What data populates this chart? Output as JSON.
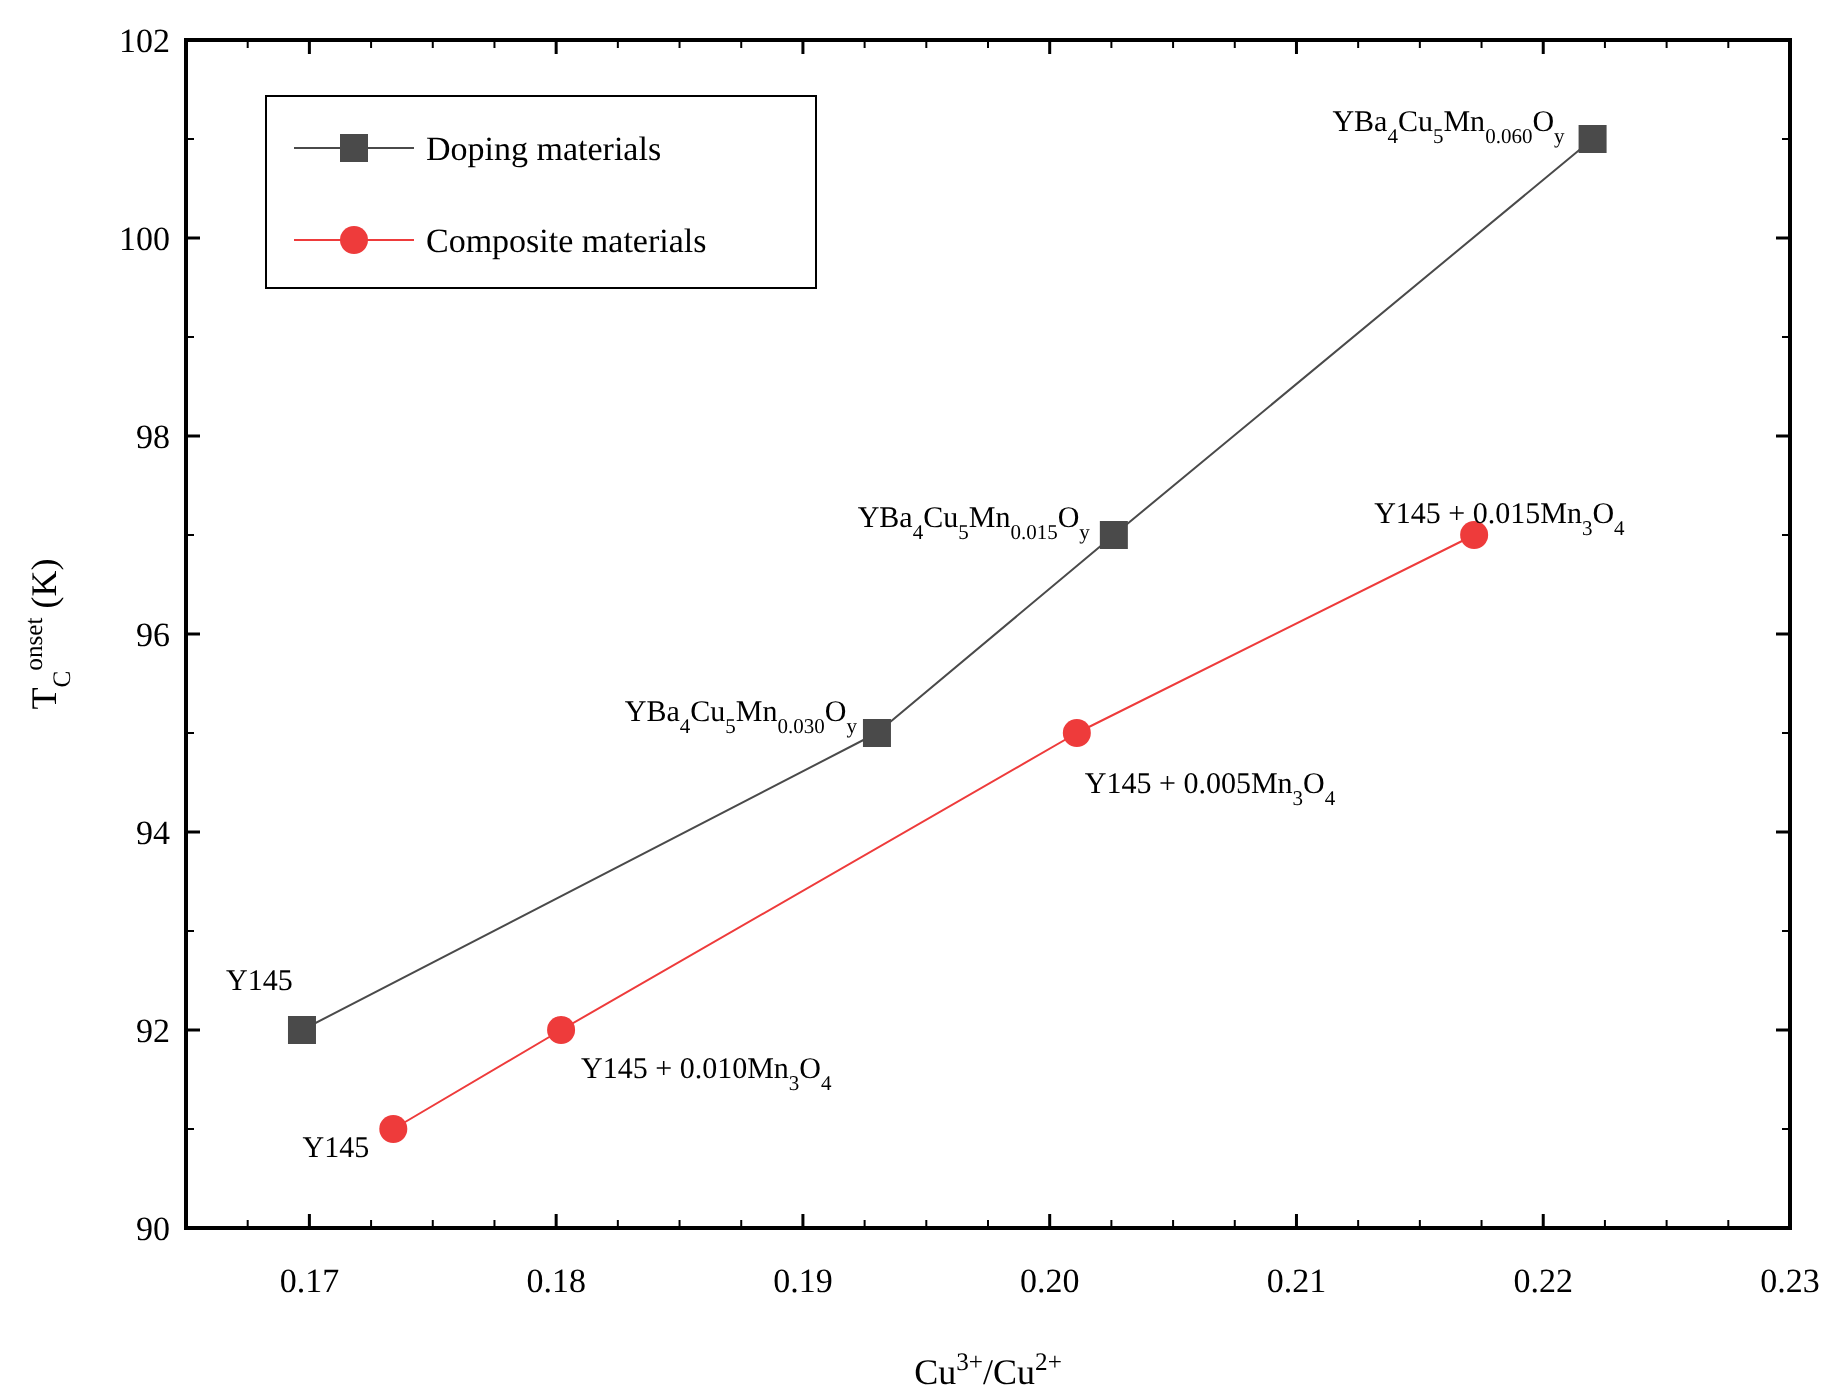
{
  "chart_data": {
    "type": "line",
    "xlabel": "Cu$^{3+}$/Cu$^{2+}$",
    "ylabel": "T$_{C}$$^{onset}$ (K)",
    "xlim": [
      0.165,
      0.23
    ],
    "xticks": [
      {
        "value": 0.17,
        "label": "0.17"
      },
      {
        "value": 0.18,
        "label": "0.18"
      },
      {
        "value": 0.19,
        "label": "0.19"
      },
      {
        "value": 0.2,
        "label": "0.20"
      },
      {
        "value": 0.21,
        "label": "0.21"
      },
      {
        "value": 0.22,
        "label": "0.22"
      },
      {
        "value": 0.23,
        "label": "0.23"
      }
    ],
    "ylim": [
      90,
      102
    ],
    "yticks": [
      90,
      92,
      94,
      96,
      98,
      100,
      102
    ],
    "grid": false,
    "legend": "top left",
    "line_style": "solid",
    "series": [
      {
        "name": "Doping materials",
        "color": "#4a4a4a",
        "marker": "square",
        "x": [
          0.1697,
          0.193,
          0.2026,
          0.222
        ],
        "values": [
          92,
          95,
          97,
          101
        ]
      },
      {
        "name": "Composite materials",
        "color": "#ee3b3b",
        "marker": "circle",
        "x": [
          0.1734,
          0.1802,
          0.2011,
          0.2172
        ],
        "values": [
          91,
          92,
          95,
          97
        ]
      }
    ],
    "annotations": [
      {
        "text": "Y145",
        "x": 0.1697,
        "y": 92
      },
      {
        "text": "YBa$_{4}$Cu$_{5}$Mn$_{0.030}$O$_{y}$",
        "x": 0.193,
        "y": 95
      },
      {
        "text": "YBa$_{4}$Cu$_{5}$Mn$_{0.015}$O$_{y}$",
        "x": 0.2026,
        "y": 97
      },
      {
        "text": "YBa$_{4}$Cu$_{5}$Mn$_{0.060}$O$_{y}$",
        "x": 0.222,
        "y": 101
      },
      {
        "text": "Y145",
        "x": 0.1734,
        "y": 91
      },
      {
        "text": "Y145 + 0.010Mn$_{3}$O$_{4}$",
        "x": 0.1802,
        "y": 92
      },
      {
        "text": "Y145 + 0.005Mn$_{3}$O$_{4}$",
        "x": 0.2011,
        "y": 95
      },
      {
        "text": "Y145 + 0.015Mn$_{3}$O$_{4}$",
        "x": 0.2172,
        "y": 97
      }
    ]
  }
}
